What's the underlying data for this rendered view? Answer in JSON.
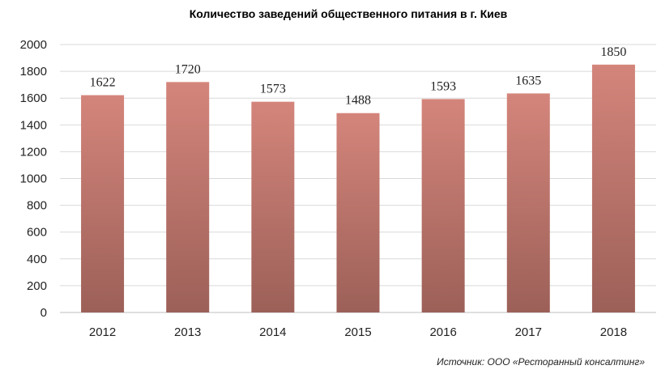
{
  "chart_data": {
    "type": "bar",
    "title": "Количество заведений общественного питания в г. Киев",
    "categories": [
      "2012",
      "2013",
      "2014",
      "2015",
      "2016",
      "2017",
      "2018"
    ],
    "values": [
      1622,
      1720,
      1573,
      1488,
      1593,
      1635,
      1850
    ],
    "ylim": [
      0,
      2000
    ],
    "yticks": [
      "0",
      "200",
      "400",
      "600",
      "800",
      "1000",
      "1200",
      "1400",
      "1600",
      "1800",
      "2000"
    ],
    "grid": true,
    "data_labels": true,
    "legend": "none",
    "colors": {
      "bar_top": "#d4857b",
      "bar_bottom": "#9c6058"
    }
  },
  "source_note": "Источник: ООО «Ресторанный консалтинг»"
}
